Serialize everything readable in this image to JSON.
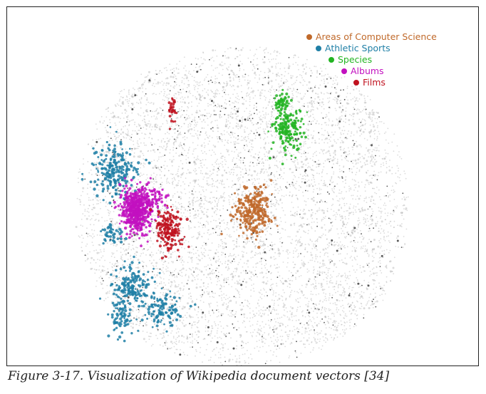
{
  "caption": "Figure 3-17. Visualization of Wikipedia document vectors [34]",
  "chart_data": {
    "type": "scatter",
    "title": "",
    "xlabel": "",
    "ylabel": "",
    "axes_visible": false,
    "grid": false,
    "legend_position": "top-right",
    "background_points": {
      "color": "#9a9a9a",
      "description_count": 7000
    },
    "series": [
      {
        "name": "Areas of Computer Science",
        "color": "#c0692a",
        "clusters": [
          {
            "cx": 0.61,
            "cy": 0.55,
            "sx": 0.028,
            "sy": 0.035,
            "n": 260
          }
        ]
      },
      {
        "name": "Athletic Sports",
        "color": "#1f7fa6",
        "clusters": [
          {
            "cx": 0.18,
            "cy": 0.43,
            "sx": 0.035,
            "sy": 0.04,
            "n": 220
          },
          {
            "cx": 0.23,
            "cy": 0.78,
            "sx": 0.03,
            "sy": 0.03,
            "n": 160
          },
          {
            "cx": 0.2,
            "cy": 0.88,
            "sx": 0.02,
            "sy": 0.03,
            "n": 80
          },
          {
            "cx": 0.33,
            "cy": 0.85,
            "sx": 0.03,
            "sy": 0.03,
            "n": 120
          },
          {
            "cx": 0.17,
            "cy": 0.62,
            "sx": 0.02,
            "sy": 0.02,
            "n": 40
          }
        ]
      },
      {
        "name": "Species",
        "color": "#22b422",
        "clusters": [
          {
            "cx": 0.72,
            "cy": 0.3,
            "sx": 0.025,
            "sy": 0.035,
            "n": 170
          },
          {
            "cx": 0.7,
            "cy": 0.22,
            "sx": 0.012,
            "sy": 0.015,
            "n": 50
          }
        ]
      },
      {
        "name": "Albums",
        "color": "#c210bf",
        "clusters": [
          {
            "cx": 0.25,
            "cy": 0.55,
            "sx": 0.025,
            "sy": 0.035,
            "n": 520
          },
          {
            "cx": 0.3,
            "cy": 0.52,
            "sx": 0.02,
            "sy": 0.02,
            "n": 60
          }
        ]
      },
      {
        "name": "Films",
        "color": "#c0121f",
        "clusters": [
          {
            "cx": 0.35,
            "cy": 0.61,
            "sx": 0.02,
            "sy": 0.03,
            "n": 180
          },
          {
            "cx": 0.36,
            "cy": 0.24,
            "sx": 0.006,
            "sy": 0.018,
            "n": 30
          }
        ]
      }
    ]
  }
}
